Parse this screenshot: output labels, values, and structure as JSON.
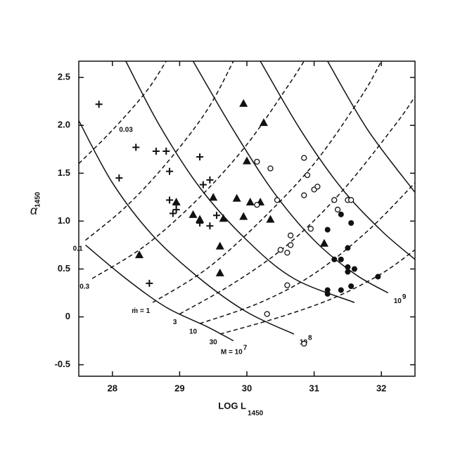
{
  "chart_data": {
    "type": "scatter",
    "x_label": "LOG L",
    "x_label_sub": "1450",
    "y_label": "α",
    "y_label_sub": "1450",
    "xlim": [
      27.5,
      32.5
    ],
    "ylim": [
      -0.62,
      2.67
    ],
    "xticks": [
      28,
      29,
      30,
      31,
      32
    ],
    "yticks": [
      -0.5,
      0,
      0.5,
      {
        "value": 1,
        "label": "1.0"
      },
      1.5,
      {
        "value": 2,
        "label": "2.0"
      },
      2.5
    ],
    "color": "#111111",
    "series": [
      {
        "marker": "plus",
        "x": [
          27.8,
          28.35,
          28.65,
          28.8,
          28.1,
          28.85,
          29.3,
          28.85,
          28.95,
          28.9,
          28.95,
          29.35,
          29.45,
          29.3,
          29.45,
          29.55,
          28.55
        ],
        "y": [
          2.22,
          1.77,
          1.73,
          1.73,
          1.45,
          1.52,
          1.67,
          1.22,
          1.18,
          1.08,
          1.12,
          1.38,
          1.43,
          0.98,
          0.95,
          1.06,
          0.35
        ]
      },
      {
        "marker": "triangle",
        "x": [
          29.95,
          30.25,
          30.0,
          28.95,
          29.5,
          29.85,
          29.2,
          29.3,
          29.65,
          29.95,
          30.05,
          30.2,
          30.35,
          28.4,
          29.6,
          29.6,
          31.15
        ],
        "y": [
          2.23,
          2.03,
          1.63,
          1.2,
          1.25,
          1.24,
          1.07,
          1.02,
          1.03,
          1.05,
          1.2,
          1.2,
          1.02,
          0.65,
          0.74,
          0.46,
          0.77
        ]
      },
      {
        "marker": "open-circle",
        "x": [
          30.15,
          30.35,
          30.85,
          30.9,
          31.0,
          31.05,
          30.85,
          30.45,
          31.3,
          31.5,
          31.55,
          31.35,
          30.15,
          30.95,
          30.65,
          30.6,
          30.5,
          30.65,
          30.6,
          30.3,
          30.85
        ],
        "y": [
          1.62,
          1.55,
          1.66,
          1.48,
          1.33,
          1.36,
          1.27,
          1.22,
          1.22,
          1.22,
          1.22,
          1.12,
          1.17,
          0.92,
          0.85,
          0.67,
          0.7,
          0.75,
          0.33,
          0.03,
          -0.28
        ]
      },
      {
        "marker": "filled-circle",
        "x": [
          31.4,
          31.55,
          31.2,
          31.5,
          31.3,
          31.4,
          31.5,
          31.6,
          31.5,
          31.2,
          31.2,
          31.4,
          31.55,
          31.95
        ],
        "y": [
          1.07,
          0.98,
          0.91,
          0.72,
          0.6,
          0.6,
          0.52,
          0.5,
          0.47,
          0.28,
          0.24,
          0.28,
          0.32,
          0.42
        ]
      }
    ],
    "curves": [
      {
        "style": "solid",
        "label": "M = 10",
        "label_sup": "7",
        "x": [
          27.6,
          28.2,
          28.8,
          29.4,
          29.8
        ],
        "y": [
          0.75,
          0.4,
          0.1,
          -0.1,
          -0.25
        ]
      },
      {
        "style": "solid",
        "label": "10",
        "label_sup": "8",
        "x": [
          27.5,
          28.0,
          28.6,
          29.3,
          30.0,
          30.7
        ],
        "y": [
          2.05,
          1.4,
          0.85,
          0.4,
          0.05,
          -0.18
        ]
      },
      {
        "style": "solid",
        "x": [
          28.2,
          28.7,
          29.3,
          30.0,
          30.7,
          31.6
        ],
        "y": [
          2.67,
          2.0,
          1.35,
          0.8,
          0.4,
          0.15
        ]
      },
      {
        "style": "solid",
        "label": "10",
        "label_sup": "9",
        "x": [
          29.2,
          29.8,
          30.4,
          31.0,
          31.6,
          32.1
        ],
        "y": [
          2.67,
          1.95,
          1.3,
          0.8,
          0.45,
          0.25
        ]
      },
      {
        "style": "solid",
        "x": [
          30.2,
          30.8,
          31.4,
          32.0,
          32.5
        ],
        "y": [
          2.67,
          1.95,
          1.35,
          0.9,
          0.6
        ]
      },
      {
        "style": "solid",
        "x": [
          31.2,
          31.8,
          32.5
        ],
        "y": [
          2.67,
          1.95,
          1.3
        ]
      },
      {
        "style": "dashed",
        "label": "0.03",
        "x": [
          27.5,
          28.0,
          28.5,
          28.8
        ],
        "y": [
          1.6,
          1.95,
          2.35,
          2.67
        ]
      },
      {
        "style": "dashed",
        "label": "0.1",
        "x": [
          27.6,
          28.2,
          28.8,
          29.4,
          29.8
        ],
        "y": [
          0.8,
          1.15,
          1.6,
          2.15,
          2.67
        ]
      },
      {
        "style": "dashed",
        "label": "0.3",
        "x": [
          27.7,
          28.5,
          29.3,
          30.0,
          30.6,
          30.85
        ],
        "y": [
          0.4,
          0.75,
          1.25,
          1.8,
          2.4,
          2.67
        ]
      },
      {
        "style": "dashed",
        "label": "ṁ = 1",
        "x": [
          28.6,
          29.4,
          30.2,
          31.0,
          31.7,
          32.0
        ],
        "y": [
          0.15,
          0.5,
          1.0,
          1.6,
          2.3,
          2.67
        ]
      },
      {
        "style": "dashed",
        "label": "3",
        "x": [
          29.0,
          29.8,
          30.6,
          31.4,
          32.2,
          32.5
        ],
        "y": [
          0.03,
          0.35,
          0.75,
          1.3,
          2.0,
          2.3
        ]
      },
      {
        "style": "dashed",
        "label": "10",
        "x": [
          29.3,
          30.2,
          31.0,
          31.8,
          32.5
        ],
        "y": [
          -0.07,
          0.15,
          0.45,
          0.9,
          1.4
        ]
      },
      {
        "style": "dashed",
        "label": "30",
        "x": [
          29.6,
          30.5,
          31.3,
          32.0,
          32.5
        ],
        "y": [
          -0.18,
          0.0,
          0.2,
          0.45,
          0.7
        ]
      }
    ]
  }
}
